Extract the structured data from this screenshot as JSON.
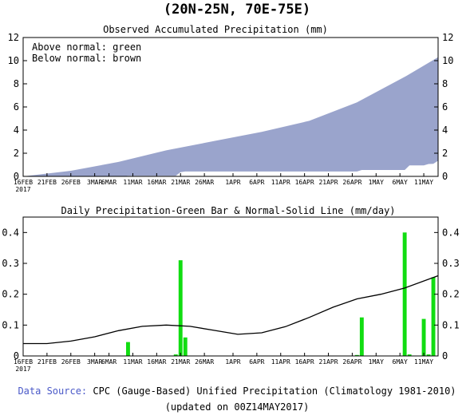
{
  "header": {
    "region": "(20N-25N, 70E-75E)"
  },
  "date_ticks": [
    "16FEB\n2017",
    "21FEB",
    "26FEB",
    "3MAR",
    "6MAR",
    "11MAR",
    "16MAR",
    "21MAR",
    "26MAR",
    "1APR",
    "6APR",
    "11APR",
    "16APR",
    "21APR",
    "26APR",
    "1MAY",
    "6MAY",
    "11MAY"
  ],
  "chart_data": [
    {
      "type": "area",
      "title": "Observed Accumulated Precipitation (mm)",
      "annotations": [
        "Above normal: green",
        "Below normal: brown"
      ],
      "x_range": [
        "2017-02-16",
        "2017-05-14"
      ],
      "ylim": [
        0,
        12
      ],
      "yticks": [
        0,
        2,
        4,
        6,
        8,
        10,
        12
      ],
      "colors": {
        "fill": "#9aa4cc",
        "accent_fill": "#9aa4cc"
      },
      "series": [
        {
          "name": "Normal accumulated",
          "x": [
            "2017-02-16",
            "2017-02-26",
            "2017-03-08",
            "2017-03-18",
            "2017-03-28",
            "2017-04-07",
            "2017-04-17",
            "2017-04-27",
            "2017-05-07",
            "2017-05-14"
          ],
          "values": [
            0.0,
            0.48,
            1.25,
            2.25,
            3.05,
            3.85,
            4.8,
            6.4,
            8.6,
            10.3
          ]
        },
        {
          "name": "Observed accumulated",
          "x": [
            "2017-02-16",
            "2017-03-09",
            "2017-03-10",
            "2017-03-20",
            "2017-03-21",
            "2017-03-22",
            "2017-04-27",
            "2017-04-28",
            "2017-05-07",
            "2017-05-08",
            "2017-05-11",
            "2017-05-12",
            "2017-05-13",
            "2017-05-14"
          ],
          "values": [
            0.0,
            0.0,
            0.05,
            0.05,
            0.36,
            0.42,
            0.42,
            0.55,
            0.55,
            0.95,
            0.95,
            1.07,
            1.08,
            1.35
          ]
        }
      ]
    },
    {
      "type": "bar",
      "title": "Daily Precipitation-Green Bar & Normal-Solid Line (mm/day)",
      "x_range": [
        "2017-02-16",
        "2017-05-14"
      ],
      "ylim": [
        0,
        0.45
      ],
      "yticks": [
        0,
        0.1,
        0.2,
        0.3,
        0.4
      ],
      "colors": {
        "bars": "#11dd11",
        "line": "#000000"
      },
      "bars": [
        {
          "x": "2017-03-10",
          "value": 0.045
        },
        {
          "x": "2017-03-20",
          "value": 0.005
        },
        {
          "x": "2017-03-21",
          "value": 0.31
        },
        {
          "x": "2017-03-22",
          "value": 0.06
        },
        {
          "x": "2017-04-27",
          "value": 0.003
        },
        {
          "x": "2017-04-28",
          "value": 0.125
        },
        {
          "x": "2017-05-07",
          "value": 0.4
        },
        {
          "x": "2017-05-08",
          "value": 0.005
        },
        {
          "x": "2017-05-11",
          "value": 0.12
        },
        {
          "x": "2017-05-12",
          "value": 0.005
        },
        {
          "x": "2017-05-13",
          "value": 0.255
        }
      ],
      "line": {
        "x": [
          "2017-02-16",
          "2017-02-21",
          "2017-02-26",
          "2017-03-03",
          "2017-03-08",
          "2017-03-13",
          "2017-03-18",
          "2017-03-23",
          "2017-03-28",
          "2017-04-02",
          "2017-04-07",
          "2017-04-12",
          "2017-04-17",
          "2017-04-22",
          "2017-04-27",
          "2017-05-02",
          "2017-05-07",
          "2017-05-14"
        ],
        "values": [
          0.04,
          0.04,
          0.048,
          0.062,
          0.082,
          0.096,
          0.1,
          0.096,
          0.083,
          0.07,
          0.075,
          0.095,
          0.125,
          0.158,
          0.185,
          0.2,
          0.22,
          0.26
        ]
      }
    }
  ],
  "footer": {
    "source_label": "Data Source:",
    "source_text": " CPC (Gauge-Based) Unified Precipitation (Climatology 1981-2010)",
    "updated": "(updated on 00Z14MAY2017)"
  }
}
